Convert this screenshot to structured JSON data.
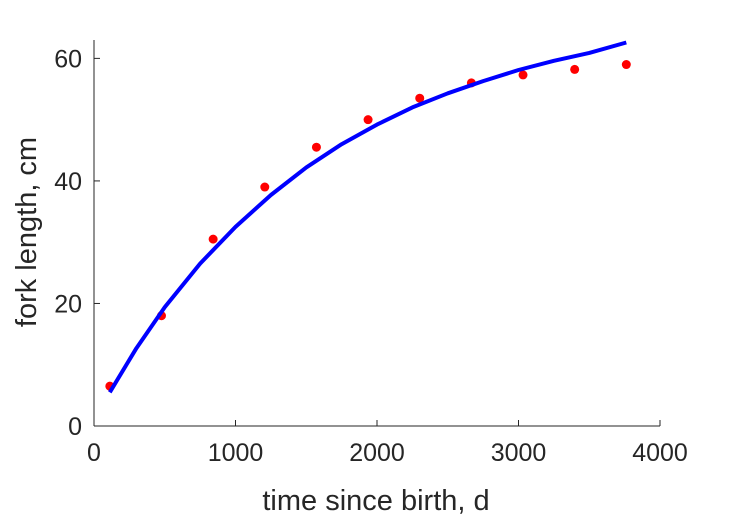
{
  "chart_data": {
    "type": "scatter",
    "title": "",
    "xlabel": "time since birth, d",
    "ylabel": "fork length, cm",
    "xlim": [
      0,
      4000
    ],
    "ylim": [
      0,
      63
    ],
    "x_ticks": [
      0,
      1000,
      2000,
      3000,
      4000
    ],
    "y_ticks": [
      0,
      20,
      40,
      60
    ],
    "x_tick_labels": [
      "0",
      "1000",
      "2000",
      "3000",
      "4000"
    ],
    "y_tick_labels": [
      "0",
      "20",
      "40",
      "60"
    ],
    "grid": false,
    "legend": "none",
    "series": [
      {
        "kind": "points",
        "color": "#ff0000",
        "x": [
          112,
          477,
          842,
          1207,
          1572,
          1937,
          2302,
          2667,
          3032,
          3397,
          3762
        ],
        "y": [
          6.5,
          18.0,
          30.5,
          39.0,
          45.5,
          50.0,
          53.5,
          56.0,
          57.3,
          58.2,
          59.0
        ]
      },
      {
        "kind": "line",
        "color": "#0000ff",
        "x": [
          112,
          300,
          500,
          750,
          1000,
          1250,
          1500,
          1750,
          2000,
          2250,
          2500,
          2750,
          3000,
          3250,
          3500,
          3762
        ],
        "y": [
          5.5,
          12.7,
          19.4,
          26.5,
          32.5,
          37.7,
          42.2,
          46.0,
          49.2,
          52.0,
          54.3,
          56.3,
          58.1,
          59.6,
          60.9,
          62.6
        ]
      }
    ]
  }
}
